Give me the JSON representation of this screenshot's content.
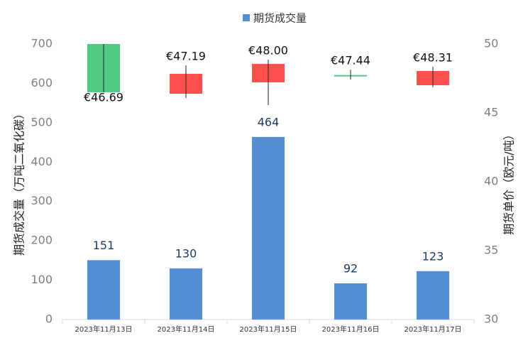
{
  "chart_data": {
    "type": "combo",
    "categories": [
      "2023年11月13日",
      "2023年11月14日",
      "2023年11月15日",
      "2023年11月16日",
      "2023年11月17日"
    ],
    "ylabel": "期货成交量（万吨二氧化碳）",
    "y2label": "期货单价（欧元/吨）",
    "ylim": [
      0,
      700
    ],
    "yticks": [
      0,
      100,
      200,
      300,
      400,
      500,
      600,
      700
    ],
    "y2lim": [
      30,
      50
    ],
    "y2ticks": [
      30,
      35,
      40,
      45,
      50
    ],
    "legend": "top",
    "series": [
      {
        "type": "bar",
        "name": "期货成交量",
        "color": "#558ed5",
        "values": [
          151,
          130,
          464,
          92,
          123
        ]
      },
      {
        "type": "candlestick",
        "axis": "y2",
        "up_color": "#4fc983",
        "down_color": "#ff5050",
        "open": [
          46.5,
          47.84,
          48.56,
          47.71,
          48.04
        ],
        "high": [
          50.0,
          48.45,
          48.87,
          48.14,
          48.35
        ],
        "low": [
          46.5,
          46.08,
          45.57,
          47.42,
          46.86
        ],
        "close": [
          50.0,
          46.39,
          47.22,
          47.75,
          47.01
        ],
        "labels": [
          "€46.69",
          "€47.19",
          "€48.00",
          "€47.44",
          "€48.31"
        ]
      }
    ]
  }
}
